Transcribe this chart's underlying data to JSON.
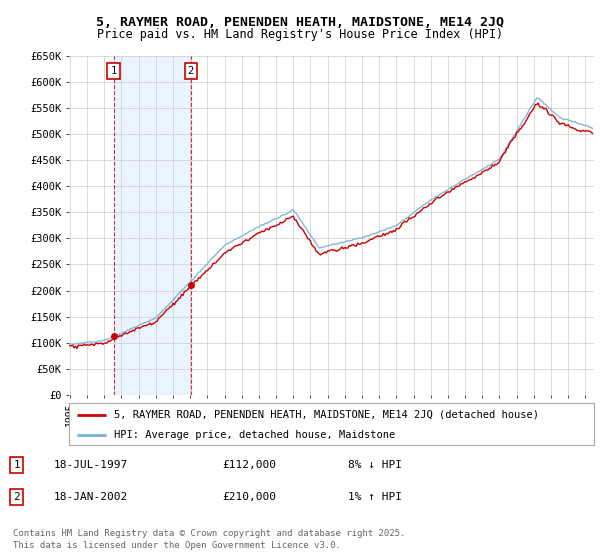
{
  "title1": "5, RAYMER ROAD, PENENDEN HEATH, MAIDSTONE, ME14 2JQ",
  "title2": "Price paid vs. HM Land Registry's House Price Index (HPI)",
  "ylim": [
    0,
    650000
  ],
  "yticks": [
    0,
    50000,
    100000,
    150000,
    200000,
    250000,
    300000,
    350000,
    400000,
    450000,
    500000,
    550000,
    600000,
    650000
  ],
  "xlim_start": 1994.95,
  "xlim_end": 2025.5,
  "sale1_x": 1997.54,
  "sale1_y": 112000,
  "sale2_x": 2002.04,
  "sale2_y": 210000,
  "legend_label1": "5, RAYMER ROAD, PENENDEN HEATH, MAIDSTONE, ME14 2JQ (detached house)",
  "legend_label2": "HPI: Average price, detached house, Maidstone",
  "ann1_label": "1",
  "ann2_label": "2",
  "ann1_date": "18-JUL-1997",
  "ann1_price": "£112,000",
  "ann1_hpi": "8% ↓ HPI",
  "ann2_date": "18-JAN-2002",
  "ann2_price": "£210,000",
  "ann2_hpi": "1% ↑ HPI",
  "price_color": "#cc0000",
  "hpi_color": "#7ab0d4",
  "shade_color": "#ddeeff",
  "footer": "Contains HM Land Registry data © Crown copyright and database right 2025.\nThis data is licensed under the Open Government Licence v3.0.",
  "background_color": "#ffffff",
  "grid_color": "#cccccc"
}
